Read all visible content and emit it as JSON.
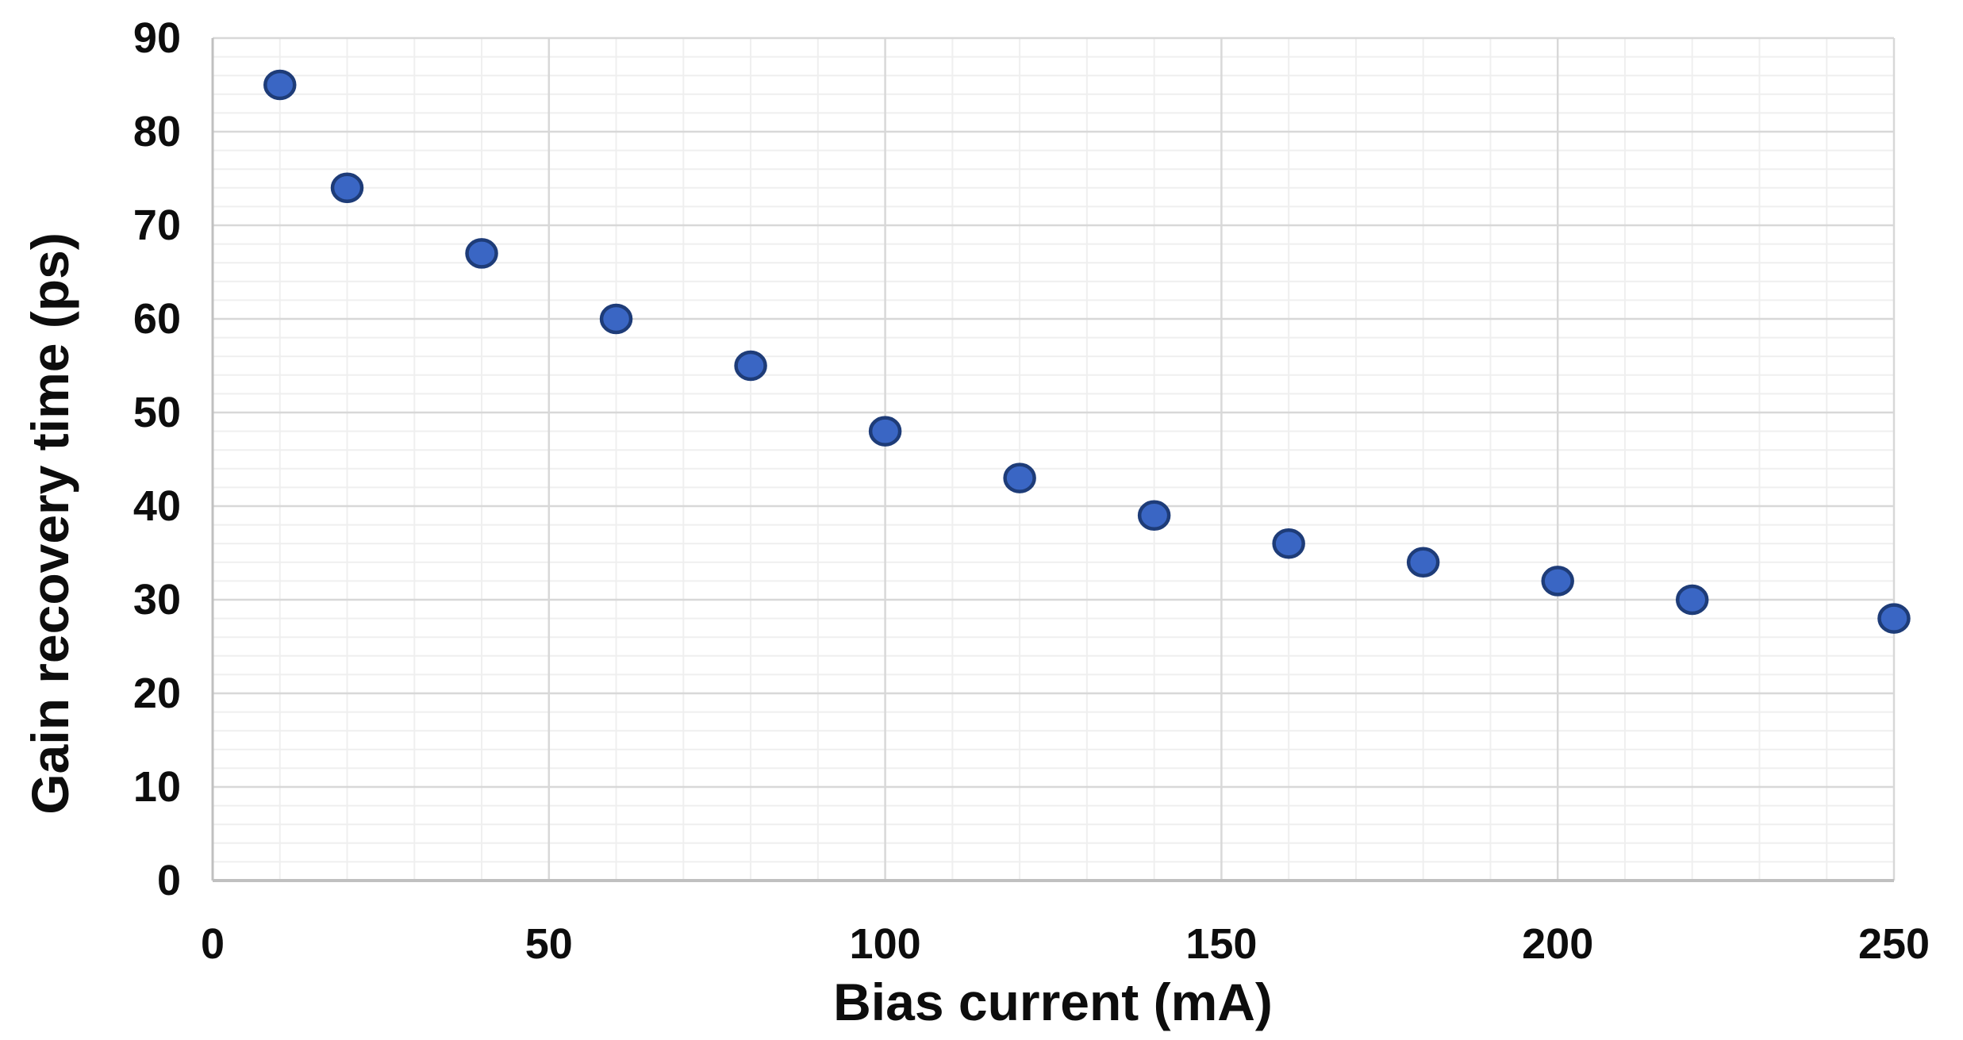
{
  "chart_data": {
    "type": "scatter",
    "title": "",
    "xlabel": "Bias current (mA)",
    "ylabel": "Gain recovery time (ps)",
    "x": [
      10,
      20,
      40,
      60,
      80,
      100,
      120,
      140,
      160,
      180,
      200,
      220,
      250
    ],
    "y": [
      85,
      74,
      67,
      60,
      55,
      48,
      43,
      39,
      36,
      34,
      32,
      30,
      28
    ],
    "xlim": [
      0,
      250
    ],
    "ylim": [
      0,
      90
    ],
    "x_ticks": [
      0,
      50,
      100,
      150,
      200,
      250
    ],
    "y_ticks": [
      0,
      10,
      20,
      30,
      40,
      50,
      60,
      70,
      80,
      90
    ],
    "x_minor_step": 10,
    "y_minor_step": 2,
    "grid": "major+minor",
    "legend_position": "none",
    "colors": {
      "marker_fill": "#3a66c4",
      "marker_edge": "#1e3c78",
      "grid_major": "#d8d8d8",
      "grid_minor": "#efefef",
      "axis_line": "#c0c0c0",
      "text": "#0d0d0d",
      "background": "#ffffff"
    }
  }
}
